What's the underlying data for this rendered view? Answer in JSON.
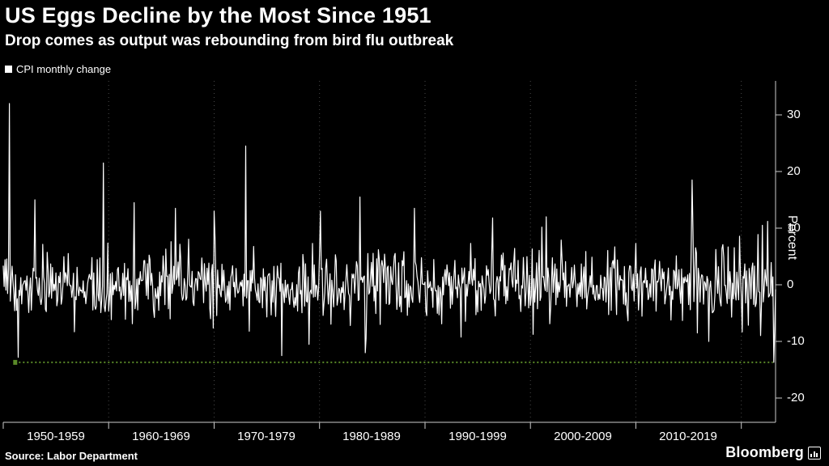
{
  "header": {
    "title": "US Eggs Decline by the Most Since 1951",
    "subtitle": "Drop comes as output was rebounding from bird flu outbreak"
  },
  "legend": {
    "label": "CPI monthly change",
    "swatch_color": "#ffffff"
  },
  "footer": {
    "source": "Source: Labor Department",
    "brand": "Bloomberg"
  },
  "chart_data": {
    "type": "line",
    "title": "US Eggs Decline by the Most Since 1951",
    "subtitle": "Drop comes as output was rebounding from bird flu outbreak",
    "series_name": "CPI monthly change",
    "ylabel": "Percent",
    "x_unit": "monthly",
    "x_start": 1950.0,
    "x_end": 2023.25,
    "ylim": [
      -24,
      36
    ],
    "y_ticks": [
      30,
      20,
      10,
      0,
      -10,
      -20
    ],
    "x_tick_labels": [
      "1950-1959",
      "1960-1969",
      "1970-1979",
      "1980-1989",
      "1990-1999",
      "2000-2009",
      "2010-2019"
    ],
    "decade_boundaries": [
      1950,
      1960,
      1970,
      1980,
      1990,
      2000,
      2010,
      2020
    ],
    "line_color": "#ffffff",
    "grid_color": "#4a4a4a",
    "axis_color": "#cccccc",
    "background": "#000000",
    "legend_position": "top-left",
    "reference_line": {
      "value": -13.7,
      "color": "#5a8a28",
      "style": "dotted",
      "x_start": 1951.1,
      "x_end": 2023.0,
      "meaning": "largest monthly decline since 1951"
    },
    "notable_points": [
      {
        "x": 1950.58,
        "y": 32.0
      },
      {
        "x": 1951.42,
        "y": -12.8
      },
      {
        "x": 1953.0,
        "y": 15.0
      },
      {
        "x": 1959.5,
        "y": 21.5
      },
      {
        "x": 1962.4,
        "y": 14.5
      },
      {
        "x": 1966.3,
        "y": 13.5
      },
      {
        "x": 1970.0,
        "y": 13.0
      },
      {
        "x": 1973.0,
        "y": 24.5
      },
      {
        "x": 1980.1,
        "y": 13.0
      },
      {
        "x": 1983.8,
        "y": 15.5
      },
      {
        "x": 1984.3,
        "y": -12.0
      },
      {
        "x": 1989.0,
        "y": 13.5
      },
      {
        "x": 2001.5,
        "y": 12.0
      },
      {
        "x": 2015.3,
        "y": 18.5
      },
      {
        "x": 2015.8,
        "y": -8.5
      },
      {
        "x": 2016.9,
        "y": -10.0
      },
      {
        "x": 2022.0,
        "y": 10.5
      },
      {
        "x": 2022.5,
        "y": 11.2
      },
      {
        "x": 2023.08,
        "y": -13.7
      }
    ],
    "noise": {
      "seed": 9,
      "std": 3.1,
      "tail_prob": 0.06,
      "tail_mult": 2.1
    }
  }
}
